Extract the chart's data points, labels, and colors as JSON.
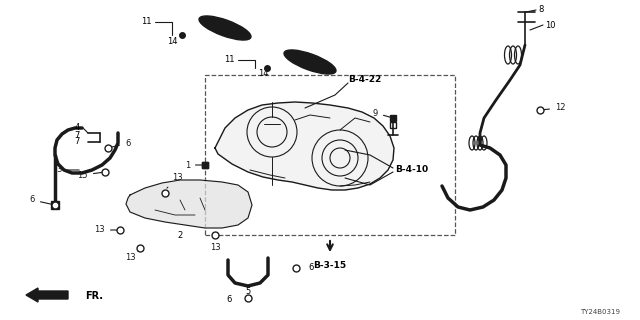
{
  "bg_color": "#ffffff",
  "line_color": "#1a1a1a",
  "diagram_code": "TY24B0319",
  "figsize": [
    6.4,
    3.2
  ],
  "dpi": 100,
  "xlim": [
    0,
    640
  ],
  "ylim": [
    0,
    320
  ]
}
